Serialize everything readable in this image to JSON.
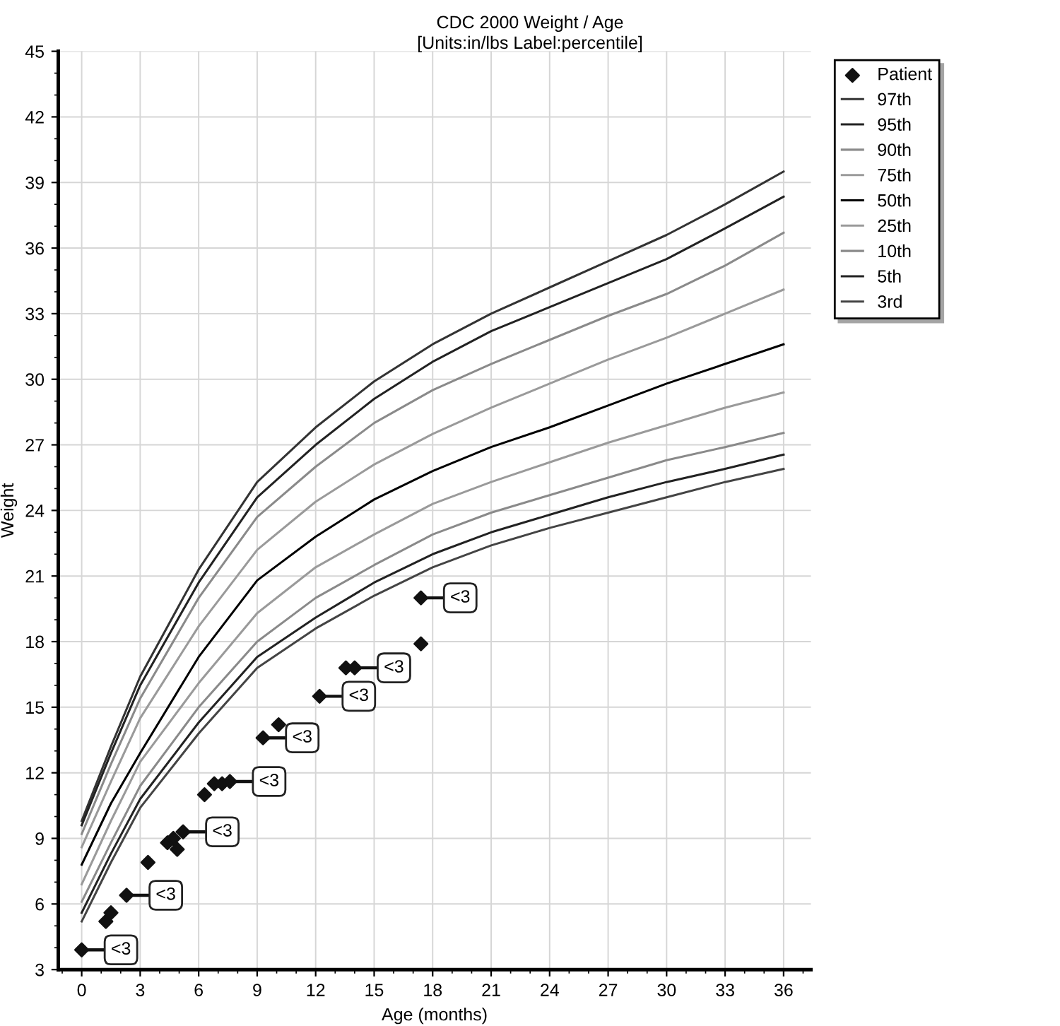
{
  "chart_data": {
    "type": "line",
    "title": "CDC 2000 Weight / Age",
    "subtitle": "[Units:in/lbs Label:percentile]",
    "xlabel": "Age (months)",
    "ylabel": "Weight",
    "x": [
      0,
      1.5,
      3,
      6,
      9,
      12,
      15,
      18,
      21,
      24,
      27,
      30,
      33,
      36
    ],
    "xlim": [
      -1.2,
      37.4
    ],
    "xticks": [
      0,
      3,
      6,
      9,
      12,
      15,
      18,
      21,
      24,
      27,
      30,
      33,
      36
    ],
    "ylim": [
      3,
      45
    ],
    "yticks": [
      3,
      6,
      9,
      12,
      15,
      18,
      21,
      24,
      27,
      30,
      33,
      36,
      39,
      42,
      45
    ],
    "grid": true,
    "legend": "top right",
    "series": [
      {
        "name": "Patient",
        "type": "scatter",
        "marker": "diamond",
        "color": "#111111",
        "x": [
          0,
          1.24,
          1.5,
          2.3,
          3.4,
          4.4,
          4.7,
          4.9,
          5.2,
          6.3,
          6.8,
          7.2,
          7.6,
          9.3,
          10.1,
          12.2,
          13.55,
          14.0,
          17.4,
          17.4
        ],
        "values": [
          3.9,
          5.2,
          5.6,
          6.4,
          7.9,
          8.8,
          9.0,
          8.5,
          9.3,
          11.0,
          11.5,
          11.5,
          11.6,
          13.6,
          14.2,
          15.5,
          16.8,
          16.8,
          17.9,
          20.0
        ]
      },
      {
        "name": "97th",
        "color": "#333333",
        "values": [
          9.8,
          13.2,
          16.4,
          21.3,
          25.3,
          27.8,
          29.9,
          31.6,
          33.0,
          34.2,
          35.4,
          36.6,
          38.0,
          39.5
        ]
      },
      {
        "name": "95th",
        "color": "#222222",
        "values": [
          9.6,
          12.9,
          16.0,
          20.7,
          24.6,
          27.0,
          29.1,
          30.8,
          32.2,
          33.3,
          34.4,
          35.5,
          36.9,
          38.35
        ]
      },
      {
        "name": "90th",
        "color": "#8a8a8a",
        "values": [
          9.2,
          12.4,
          15.4,
          20.0,
          23.7,
          26.0,
          28.0,
          29.5,
          30.7,
          31.8,
          32.9,
          33.9,
          35.2,
          36.7
        ]
      },
      {
        "name": "75th",
        "color": "#9a9a9a",
        "values": [
          8.6,
          11.6,
          14.5,
          18.7,
          22.2,
          24.4,
          26.1,
          27.5,
          28.7,
          29.8,
          30.9,
          31.9,
          33.0,
          34.1
        ]
      },
      {
        "name": "50th",
        "color": "#000000",
        "values": [
          7.8,
          10.6,
          12.9,
          17.3,
          20.8,
          22.8,
          24.5,
          25.8,
          26.9,
          27.8,
          28.8,
          29.8,
          30.7,
          31.6
        ]
      },
      {
        "name": "25th",
        "color": "#9a9a9a",
        "values": [
          6.9,
          9.8,
          12.5,
          16.1,
          19.3,
          21.4,
          22.9,
          24.3,
          25.3,
          26.2,
          27.1,
          27.9,
          28.7,
          29.4
        ]
      },
      {
        "name": "10th",
        "color": "#8a8a8a",
        "values": [
          6.1,
          8.8,
          11.4,
          15.0,
          18.0,
          20.0,
          21.5,
          22.9,
          23.9,
          24.7,
          25.5,
          26.3,
          26.9,
          27.55
        ]
      },
      {
        "name": "5th",
        "color": "#222222",
        "values": [
          5.6,
          8.3,
          10.8,
          14.3,
          17.3,
          19.1,
          20.7,
          22.0,
          23.0,
          23.8,
          24.6,
          25.3,
          25.9,
          26.55
        ]
      },
      {
        "name": "3rd",
        "color": "#444444",
        "values": [
          5.2,
          7.9,
          10.4,
          13.8,
          16.8,
          18.6,
          20.1,
          21.4,
          22.4,
          23.2,
          23.9,
          24.6,
          25.3,
          25.9
        ]
      }
    ],
    "annotations": [
      {
        "text": "<3",
        "x": 0,
        "y": 3.9
      },
      {
        "text": "<3",
        "x": 2.3,
        "y": 6.4
      },
      {
        "text": "<3",
        "x": 5.2,
        "y": 9.3
      },
      {
        "text": "<3",
        "x": 7.6,
        "y": 11.6
      },
      {
        "text": "<3",
        "x": 9.3,
        "y": 13.6
      },
      {
        "text": "<3",
        "x": 12.2,
        "y": 15.5
      },
      {
        "text": "<3",
        "x": 14.0,
        "y": 16.8
      },
      {
        "text": "<3",
        "x": 17.4,
        "y": 20.0
      }
    ]
  }
}
